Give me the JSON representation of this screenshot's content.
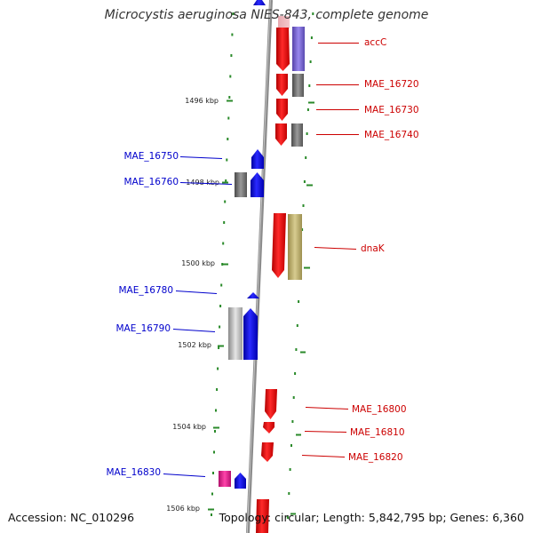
{
  "title": "Microcystis aeruginosa NIES-843, complete genome",
  "accession": "Accession: NC_010296",
  "summary": "Topology: circular; Length: 5,842,795 bp; Genes: 6,360",
  "colors": {
    "forward_gene": "#ee0000",
    "reverse_gene": "#0000ee",
    "backbone": "#8c8c8c",
    "dots": "#2a8a2a",
    "label_forward": "#cc0000",
    "label_reverse": "#0000cc"
  },
  "ticks": [
    {
      "label": "1496 kbp"
    },
    {
      "label": "1498 kbp"
    },
    {
      "label": "1500 kbp"
    },
    {
      "label": "1502 kbp"
    },
    {
      "label": "1504 kbp"
    },
    {
      "label": "1506 kbp"
    }
  ],
  "genes_forward": [
    {
      "label": "accC"
    },
    {
      "label": "MAE_16720"
    },
    {
      "label": "MAE_16730"
    },
    {
      "label": "MAE_16740"
    },
    {
      "label": "dnaK"
    },
    {
      "label": "MAE_16800"
    },
    {
      "label": "MAE_16810"
    },
    {
      "label": "MAE_16820"
    }
  ],
  "genes_reverse": [
    {
      "label": "MAE_16750"
    },
    {
      "label": "MAE_16760"
    },
    {
      "label": "MAE_16780"
    },
    {
      "label": "MAE_16790"
    },
    {
      "label": "MAE_16830"
    }
  ]
}
